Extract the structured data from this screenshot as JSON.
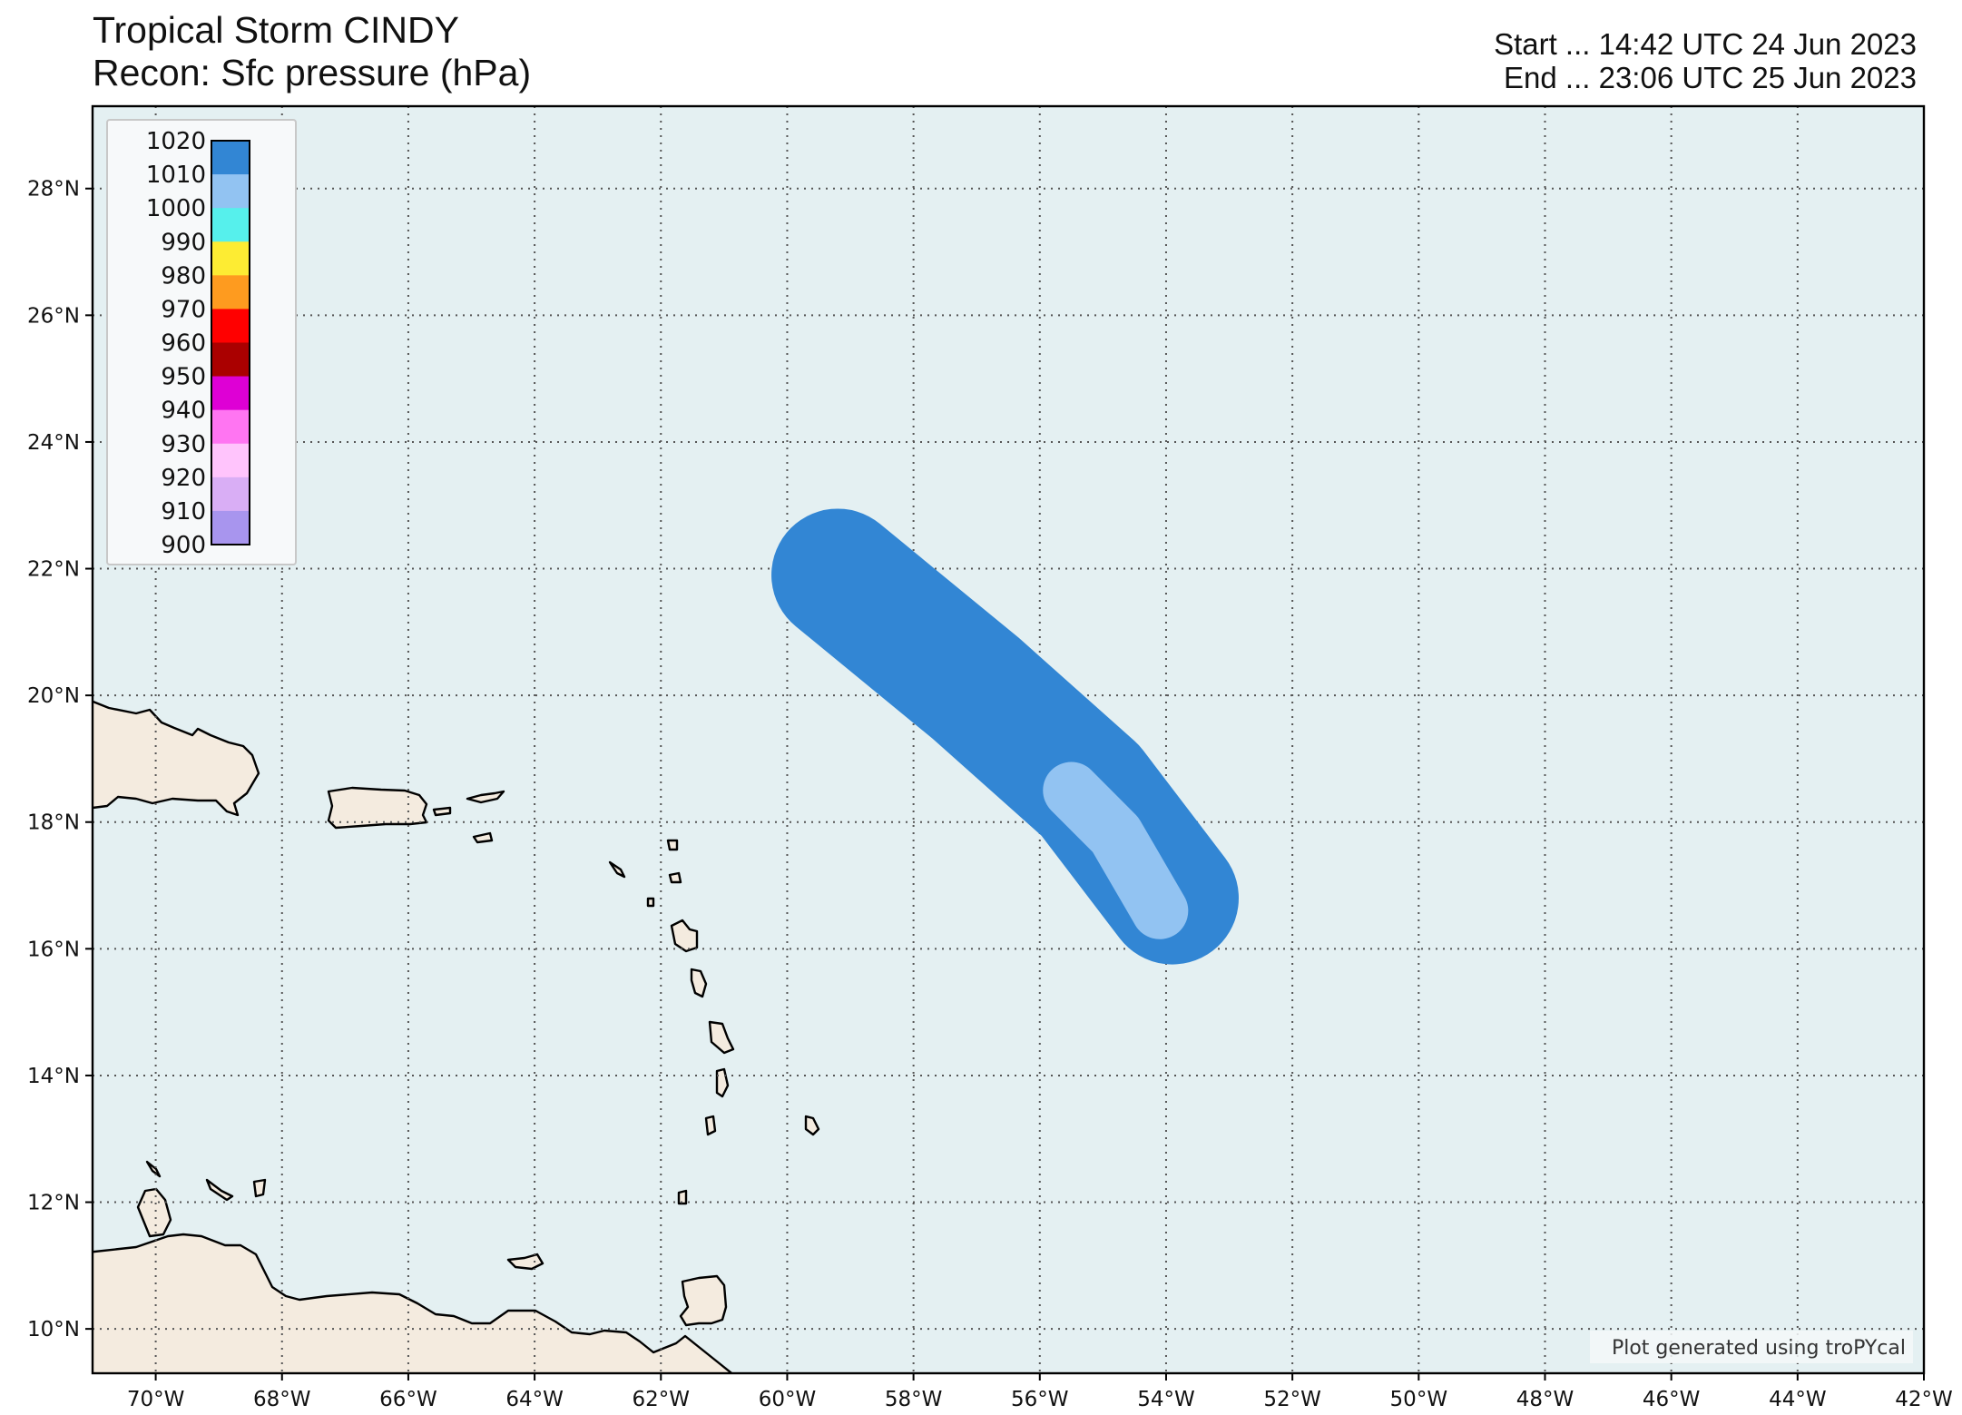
{
  "header": {
    "title": "Tropical Storm CINDY",
    "subtitle": "Recon: Sfc pressure (hPa)",
    "start_text": "Start ... 14:42 UTC 24 Jun 2023",
    "end_text": "End ... 23:06 UTC 25 Jun 2023"
  },
  "map": {
    "lon_range": [
      -71,
      -42
    ],
    "lat_range": [
      9.3,
      29.3
    ],
    "ocean_color": "#e4f0f2",
    "land_color": "#f4ebdf",
    "grid_style": "dotted",
    "lon_ticks": [
      {
        "value": -70,
        "label": "70°W"
      },
      {
        "value": -68,
        "label": "68°W"
      },
      {
        "value": -66,
        "label": "66°W"
      },
      {
        "value": -64,
        "label": "64°W"
      },
      {
        "value": -62,
        "label": "62°W"
      },
      {
        "value": -60,
        "label": "60°W"
      },
      {
        "value": -58,
        "label": "58°W"
      },
      {
        "value": -56,
        "label": "56°W"
      },
      {
        "value": -54,
        "label": "54°W"
      },
      {
        "value": -52,
        "label": "52°W"
      },
      {
        "value": -50,
        "label": "50°W"
      },
      {
        "value": -48,
        "label": "48°W"
      },
      {
        "value": -46,
        "label": "46°W"
      },
      {
        "value": -44,
        "label": "44°W"
      },
      {
        "value": -42,
        "label": "42°W"
      }
    ],
    "lat_ticks": [
      {
        "value": 10,
        "label": "10°N"
      },
      {
        "value": 12,
        "label": "12°N"
      },
      {
        "value": 14,
        "label": "14°N"
      },
      {
        "value": 16,
        "label": "16°N"
      },
      {
        "value": 18,
        "label": "18°N"
      },
      {
        "value": 20,
        "label": "20°N"
      },
      {
        "value": 22,
        "label": "22°N"
      },
      {
        "value": 24,
        "label": "24°N"
      },
      {
        "value": 26,
        "label": "26°N"
      },
      {
        "value": 28,
        "label": "28°N"
      }
    ]
  },
  "legend": {
    "position": "top-left",
    "levels": [
      "1020",
      "1010",
      "1000",
      "990",
      "980",
      "970",
      "960",
      "950",
      "940",
      "930",
      "920",
      "910",
      "900"
    ],
    "colors": [
      "#3286d4",
      "#92c3f2",
      "#56f0ec",
      "#fdec33",
      "#fe9b1f",
      "#ff0000",
      "#aa0000",
      "#de00d5",
      "#ff75f2",
      "#ffc4fc",
      "#d9aef5",
      "#a895ee"
    ]
  },
  "swath": {
    "outer_color": "#3286d4",
    "inner_color": "#92c3f2",
    "path": [
      {
        "lon": -59.2,
        "lat": 21.9
      },
      {
        "lon": -57.0,
        "lat": 20.1
      },
      {
        "lon": -55.2,
        "lat": 18.5
      },
      {
        "lon": -53.9,
        "lat": 16.8
      }
    ],
    "outer_radius_deg": 1.05,
    "inner_path": [
      {
        "lon": -55.5,
        "lat": 18.5
      },
      {
        "lon": -54.8,
        "lat": 17.8
      },
      {
        "lon": -54.1,
        "lat": 16.6
      }
    ],
    "inner_radius_deg": 0.45
  },
  "credit": "Plot generated using troPYcal"
}
